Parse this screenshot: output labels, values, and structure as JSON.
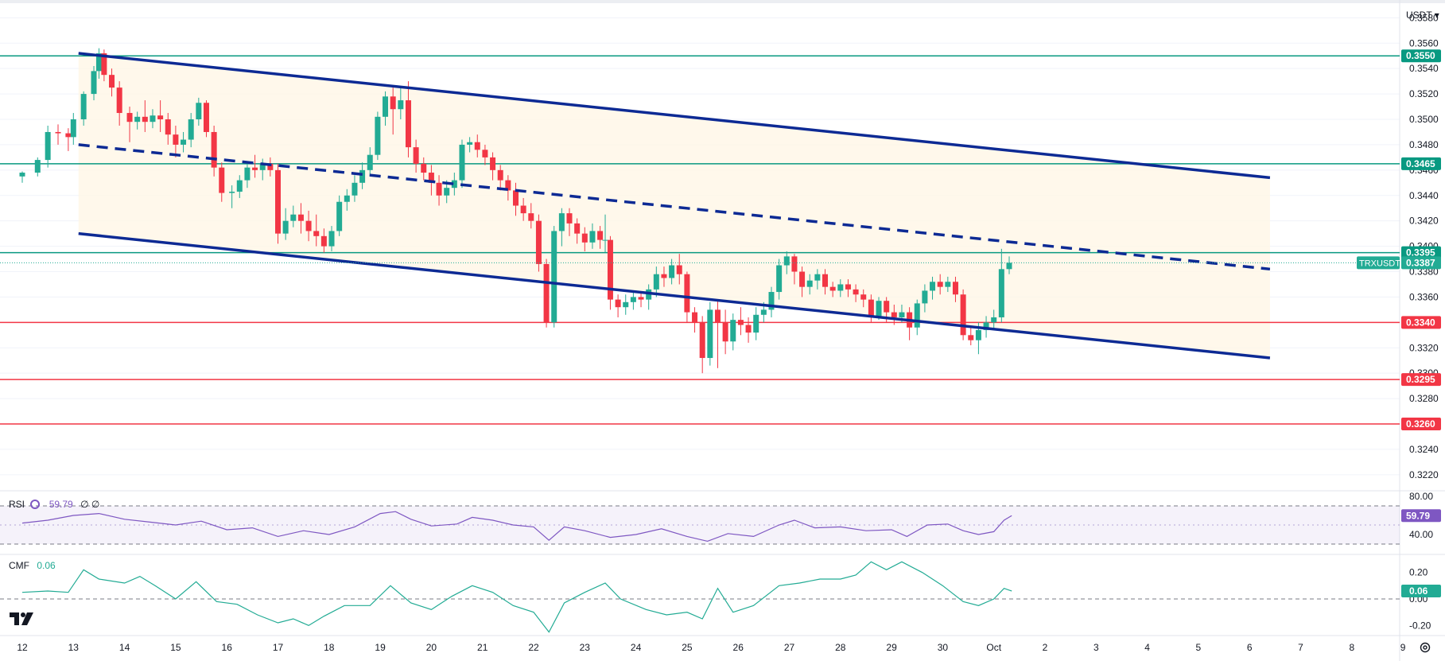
{
  "currency_selector": "USDT",
  "symbol": "TRXUSDT",
  "chart_data": {
    "type": "candlestick",
    "symbol": "TRXUSDT",
    "quote_currency": "USDT",
    "price_axis_ticks": [
      "0.3580",
      "0.3560",
      "0.3540",
      "0.3520",
      "0.3500",
      "0.3480",
      "0.3460",
      "0.3440",
      "0.3420",
      "0.3400",
      "0.3380",
      "0.3360",
      "0.3340",
      "0.3320",
      "0.3300",
      "0.3280",
      "0.3260",
      "0.3240",
      "0.3220"
    ],
    "price_ylim": [
      0.3208,
      0.3594
    ],
    "x_labels": [
      "12",
      "13",
      "14",
      "15",
      "16",
      "17",
      "18",
      "19",
      "20",
      "21",
      "22",
      "23",
      "24",
      "25",
      "26",
      "27",
      "28",
      "29",
      "30",
      "Oct",
      "2",
      "3",
      "4",
      "5",
      "6",
      "7",
      "8",
      "9"
    ],
    "current_price": "0.3387",
    "horizontal_levels": [
      {
        "price": 0.355,
        "label": "0.3550",
        "color": "#089981"
      },
      {
        "price": 0.3465,
        "label": "0.3465",
        "color": "#089981"
      },
      {
        "price": 0.3395,
        "label": "0.3395",
        "color": "#089981"
      },
      {
        "price": 0.334,
        "label": "0.3340",
        "color": "#f23645"
      },
      {
        "price": 0.3295,
        "label": "0.3295",
        "color": "#f23645"
      },
      {
        "price": 0.326,
        "label": "0.3260",
        "color": "#f23645"
      }
    ],
    "channel": {
      "upper": {
        "from": [
          13.1,
          0.3552
        ],
        "to": [
          36.4,
          0.3454
        ]
      },
      "middle": {
        "from": [
          13.1,
          0.348
        ],
        "to": [
          36.4,
          0.3382
        ]
      },
      "lower": {
        "from": [
          13.1,
          0.341
        ],
        "to": [
          36.4,
          0.3312
        ]
      },
      "color": "#0d2a94"
    },
    "candles": [
      [
        12.0,
        0.3455,
        0.3458,
        0.345,
        0.3459
      ],
      [
        12.3,
        0.3458,
        0.3468,
        0.3455,
        0.347
      ],
      [
        12.5,
        0.3468,
        0.349,
        0.3462,
        0.3495
      ],
      [
        12.7,
        0.349,
        0.3489,
        0.348,
        0.3496
      ],
      [
        12.9,
        0.3489,
        0.3486,
        0.3475,
        0.3493
      ],
      [
        13.0,
        0.3486,
        0.35,
        0.348,
        0.3505
      ],
      [
        13.2,
        0.35,
        0.352,
        0.3495,
        0.3522
      ],
      [
        13.4,
        0.352,
        0.3538,
        0.3515,
        0.3542
      ],
      [
        13.5,
        0.3538,
        0.3552,
        0.3532,
        0.3556
      ],
      [
        13.6,
        0.3552,
        0.3535,
        0.353,
        0.3555
      ],
      [
        13.75,
        0.3535,
        0.3525,
        0.3518,
        0.354
      ],
      [
        13.9,
        0.3525,
        0.3505,
        0.3495,
        0.353
      ],
      [
        14.1,
        0.3505,
        0.3498,
        0.3482,
        0.351
      ],
      [
        14.25,
        0.3498,
        0.3502,
        0.3492,
        0.3506
      ],
      [
        14.4,
        0.3502,
        0.3498,
        0.349,
        0.3515
      ],
      [
        14.55,
        0.3498,
        0.3503,
        0.3493,
        0.3508
      ],
      [
        14.7,
        0.3503,
        0.35,
        0.349,
        0.3515
      ],
      [
        14.85,
        0.35,
        0.3488,
        0.348,
        0.3505
      ],
      [
        15.0,
        0.3488,
        0.348,
        0.347,
        0.3495
      ],
      [
        15.15,
        0.348,
        0.3484,
        0.3474,
        0.349
      ],
      [
        15.3,
        0.3484,
        0.35,
        0.3478,
        0.3505
      ],
      [
        15.45,
        0.35,
        0.3513,
        0.3495,
        0.3517
      ],
      [
        15.6,
        0.3513,
        0.349,
        0.3486,
        0.3515
      ],
      [
        15.75,
        0.349,
        0.3462,
        0.3455,
        0.3495
      ],
      [
        15.9,
        0.3462,
        0.3442,
        0.3435,
        0.3466
      ],
      [
        16.1,
        0.3442,
        0.3443,
        0.343,
        0.3448
      ],
      [
        16.25,
        0.3443,
        0.3452,
        0.3438,
        0.3456
      ],
      [
        16.4,
        0.3452,
        0.3462,
        0.3446,
        0.3466
      ],
      [
        16.55,
        0.3462,
        0.346,
        0.3454,
        0.3472
      ],
      [
        16.7,
        0.346,
        0.3465,
        0.3452,
        0.3469
      ],
      [
        16.85,
        0.3465,
        0.346,
        0.3455,
        0.347
      ],
      [
        17.0,
        0.346,
        0.341,
        0.3402,
        0.3465
      ],
      [
        17.15,
        0.341,
        0.342,
        0.3405,
        0.343
      ],
      [
        17.3,
        0.342,
        0.3425,
        0.3415,
        0.3432
      ],
      [
        17.45,
        0.3425,
        0.342,
        0.341,
        0.3434
      ],
      [
        17.6,
        0.342,
        0.3412,
        0.3404,
        0.3428
      ],
      [
        17.75,
        0.3412,
        0.3408,
        0.34,
        0.3425
      ],
      [
        17.9,
        0.3408,
        0.34,
        0.3395,
        0.3414
      ],
      [
        18.05,
        0.34,
        0.3412,
        0.3396,
        0.3416
      ],
      [
        18.2,
        0.3412,
        0.3435,
        0.3408,
        0.344
      ],
      [
        18.35,
        0.3435,
        0.344,
        0.3428,
        0.3445
      ],
      [
        18.5,
        0.344,
        0.345,
        0.3435,
        0.3456
      ],
      [
        18.65,
        0.345,
        0.346,
        0.3445,
        0.3466
      ],
      [
        18.8,
        0.346,
        0.3472,
        0.3455,
        0.3478
      ],
      [
        18.95,
        0.3472,
        0.3502,
        0.3468,
        0.3506
      ],
      [
        19.1,
        0.3502,
        0.3518,
        0.3495,
        0.3522
      ],
      [
        19.25,
        0.3518,
        0.3508,
        0.3488,
        0.3525
      ],
      [
        19.4,
        0.3508,
        0.3515,
        0.35,
        0.3525
      ],
      [
        19.55,
        0.3515,
        0.3478,
        0.347,
        0.353
      ],
      [
        19.7,
        0.3478,
        0.3465,
        0.3458,
        0.3484
      ],
      [
        19.85,
        0.3465,
        0.3458,
        0.3452,
        0.347
      ],
      [
        20.0,
        0.3458,
        0.345,
        0.344,
        0.3464
      ],
      [
        20.15,
        0.345,
        0.344,
        0.3432,
        0.3456
      ],
      [
        20.3,
        0.344,
        0.3446,
        0.3434,
        0.3452
      ],
      [
        20.45,
        0.3446,
        0.3452,
        0.344,
        0.3458
      ],
      [
        20.6,
        0.3452,
        0.348,
        0.3446,
        0.3484
      ],
      [
        20.75,
        0.348,
        0.3482,
        0.3474,
        0.3486
      ],
      [
        20.9,
        0.3482,
        0.3476,
        0.347,
        0.3488
      ],
      [
        21.05,
        0.3476,
        0.347,
        0.3464,
        0.348
      ],
      [
        21.2,
        0.347,
        0.346,
        0.3452,
        0.3474
      ],
      [
        21.35,
        0.346,
        0.3452,
        0.3444,
        0.3464
      ],
      [
        21.5,
        0.3452,
        0.3444,
        0.3436,
        0.3456
      ],
      [
        21.65,
        0.3444,
        0.3432,
        0.3424,
        0.345
      ],
      [
        21.8,
        0.3432,
        0.3426,
        0.342,
        0.3438
      ],
      [
        21.95,
        0.3426,
        0.342,
        0.3414,
        0.3434
      ],
      [
        22.1,
        0.342,
        0.3386,
        0.338,
        0.3425
      ],
      [
        22.25,
        0.3386,
        0.334,
        0.3336,
        0.339
      ],
      [
        22.4,
        0.334,
        0.3412,
        0.3336,
        0.3416
      ],
      [
        22.55,
        0.3412,
        0.3426,
        0.34,
        0.343
      ],
      [
        22.7,
        0.3426,
        0.3418,
        0.3408,
        0.343
      ],
      [
        22.85,
        0.3418,
        0.341,
        0.3402,
        0.3422
      ],
      [
        23.0,
        0.341,
        0.3403,
        0.3396,
        0.3415
      ],
      [
        23.15,
        0.3403,
        0.3412,
        0.3398,
        0.3418
      ],
      [
        23.3,
        0.3412,
        0.3405,
        0.3398,
        0.3416
      ],
      [
        23.4,
        0.3405,
        0.3405,
        0.3395,
        0.3425
      ],
      [
        23.5,
        0.3405,
        0.3358,
        0.335,
        0.3408
      ],
      [
        23.65,
        0.3358,
        0.3352,
        0.3344,
        0.3362
      ],
      [
        23.8,
        0.3352,
        0.3356,
        0.3346,
        0.3362
      ],
      [
        23.95,
        0.3356,
        0.336,
        0.335,
        0.3364
      ],
      [
        24.1,
        0.336,
        0.3358,
        0.3352,
        0.3364
      ],
      [
        24.25,
        0.3358,
        0.3366,
        0.335,
        0.337
      ],
      [
        24.4,
        0.3366,
        0.3378,
        0.336,
        0.3384
      ],
      [
        24.55,
        0.3378,
        0.3375,
        0.3368,
        0.3384
      ],
      [
        24.7,
        0.3375,
        0.3385,
        0.337,
        0.339
      ],
      [
        24.85,
        0.3385,
        0.3378,
        0.337,
        0.3394
      ],
      [
        25.0,
        0.3378,
        0.3348,
        0.334,
        0.338
      ],
      [
        25.15,
        0.3348,
        0.334,
        0.3332,
        0.3352
      ],
      [
        25.3,
        0.334,
        0.3312,
        0.33,
        0.3345
      ],
      [
        25.45,
        0.3312,
        0.335,
        0.3306,
        0.3356
      ],
      [
        25.6,
        0.335,
        0.334,
        0.3304,
        0.3358
      ],
      [
        25.75,
        0.334,
        0.3325,
        0.3315,
        0.335
      ],
      [
        25.9,
        0.3325,
        0.3342,
        0.3318,
        0.3347
      ],
      [
        26.05,
        0.3342,
        0.3338,
        0.333,
        0.3352
      ],
      [
        26.2,
        0.3338,
        0.3332,
        0.3324,
        0.3344
      ],
      [
        26.35,
        0.3332,
        0.3346,
        0.3326,
        0.3352
      ],
      [
        26.5,
        0.3346,
        0.335,
        0.334,
        0.3356
      ],
      [
        26.65,
        0.335,
        0.3364,
        0.3344,
        0.3368
      ],
      [
        26.8,
        0.3364,
        0.3385,
        0.3358,
        0.339
      ],
      [
        26.95,
        0.3385,
        0.3392,
        0.3378,
        0.3396
      ],
      [
        27.1,
        0.3392,
        0.338,
        0.337,
        0.3394
      ],
      [
        27.25,
        0.338,
        0.3368,
        0.336,
        0.3384
      ],
      [
        27.4,
        0.3368,
        0.3373,
        0.3362,
        0.3378
      ],
      [
        27.55,
        0.3373,
        0.3378,
        0.3366,
        0.3382
      ],
      [
        27.7,
        0.3378,
        0.3368,
        0.3362,
        0.3382
      ],
      [
        27.85,
        0.3368,
        0.3365,
        0.336,
        0.3372
      ],
      [
        28.0,
        0.3365,
        0.337,
        0.336,
        0.3374
      ],
      [
        28.15,
        0.337,
        0.3366,
        0.336,
        0.3374
      ],
      [
        28.3,
        0.3366,
        0.3362,
        0.3356,
        0.337
      ],
      [
        28.45,
        0.3362,
        0.3358,
        0.3352,
        0.3366
      ],
      [
        28.6,
        0.3358,
        0.3345,
        0.334,
        0.3362
      ],
      [
        28.75,
        0.3345,
        0.3357,
        0.3342,
        0.336
      ],
      [
        28.9,
        0.3357,
        0.3348,
        0.334,
        0.336
      ],
      [
        29.05,
        0.3348,
        0.3344,
        0.3338,
        0.3354
      ],
      [
        29.2,
        0.3344,
        0.3348,
        0.334,
        0.3354
      ],
      [
        29.35,
        0.3348,
        0.3336,
        0.3326,
        0.3352
      ],
      [
        29.5,
        0.3336,
        0.3355,
        0.333,
        0.3358
      ],
      [
        29.65,
        0.3355,
        0.3365,
        0.3348,
        0.337
      ],
      [
        29.8,
        0.3365,
        0.3372,
        0.3358,
        0.3376
      ],
      [
        29.95,
        0.3372,
        0.3368,
        0.3362,
        0.3378
      ],
      [
        30.1,
        0.3368,
        0.3372,
        0.3364,
        0.3376
      ],
      [
        30.25,
        0.3372,
        0.3362,
        0.3356,
        0.3376
      ],
      [
        30.4,
        0.3362,
        0.333,
        0.3326,
        0.3366
      ],
      [
        30.55,
        0.333,
        0.3326,
        0.3322,
        0.3336
      ],
      [
        30.7,
        0.3326,
        0.3334,
        0.3315,
        0.334
      ],
      [
        30.85,
        0.3334,
        0.334,
        0.3328,
        0.3345
      ],
      [
        31.0,
        0.334,
        0.3344,
        0.3334,
        0.335
      ],
      [
        31.15,
        0.3344,
        0.3382,
        0.334,
        0.3398
      ],
      [
        31.3,
        0.3382,
        0.3387,
        0.3378,
        0.3392
      ]
    ],
    "rsi": {
      "label": "RSI",
      "value": "59.79",
      "extra": "∅ ∅",
      "axis_labels": [
        "80.00",
        "40.00"
      ],
      "ylim": [
        20,
        85
      ],
      "overbought": 70,
      "oversold": 30,
      "color": "#7e57c2",
      "values": [
        [
          12.0,
          52
        ],
        [
          12.5,
          55
        ],
        [
          13.0,
          60
        ],
        [
          13.5,
          62
        ],
        [
          14.0,
          56
        ],
        [
          14.5,
          53
        ],
        [
          15.0,
          50
        ],
        [
          15.5,
          54
        ],
        [
          16.0,
          45
        ],
        [
          16.5,
          47
        ],
        [
          17.0,
          38
        ],
        [
          17.5,
          44
        ],
        [
          18.0,
          40
        ],
        [
          18.5,
          48
        ],
        [
          19.0,
          62
        ],
        [
          19.3,
          64
        ],
        [
          19.6,
          56
        ],
        [
          20.0,
          49
        ],
        [
          20.5,
          51
        ],
        [
          20.8,
          58
        ],
        [
          21.2,
          55
        ],
        [
          21.6,
          50
        ],
        [
          22.0,
          48
        ],
        [
          22.3,
          34
        ],
        [
          22.6,
          48
        ],
        [
          23.0,
          44
        ],
        [
          23.5,
          37
        ],
        [
          24.0,
          40
        ],
        [
          24.5,
          46
        ],
        [
          25.0,
          38
        ],
        [
          25.4,
          33
        ],
        [
          25.8,
          41
        ],
        [
          26.3,
          38
        ],
        [
          26.8,
          50
        ],
        [
          27.1,
          55
        ],
        [
          27.5,
          47
        ],
        [
          28.0,
          48
        ],
        [
          28.5,
          44
        ],
        [
          29.0,
          45
        ],
        [
          29.3,
          38
        ],
        [
          29.7,
          50
        ],
        [
          30.1,
          51
        ],
        [
          30.4,
          44
        ],
        [
          30.7,
          40
        ],
        [
          31.0,
          43
        ],
        [
          31.2,
          55
        ],
        [
          31.35,
          59.79
        ]
      ]
    },
    "cmf": {
      "label": "CMF",
      "value": "0.06",
      "axis_labels": [
        "0.20",
        "0.00",
        "-0.20"
      ],
      "ylim": [
        -0.27,
        0.33
      ],
      "color": "#22ab94",
      "values": [
        [
          12.0,
          0.05
        ],
        [
          12.5,
          0.06
        ],
        [
          12.9,
          0.05
        ],
        [
          13.2,
          0.22
        ],
        [
          13.5,
          0.15
        ],
        [
          14.0,
          0.12
        ],
        [
          14.3,
          0.17
        ],
        [
          14.6,
          0.1
        ],
        [
          15.0,
          0.0
        ],
        [
          15.4,
          0.13
        ],
        [
          15.8,
          -0.02
        ],
        [
          16.2,
          -0.04
        ],
        [
          16.6,
          -0.12
        ],
        [
          17.0,
          -0.18
        ],
        [
          17.3,
          -0.15
        ],
        [
          17.6,
          -0.2
        ],
        [
          17.9,
          -0.13
        ],
        [
          18.3,
          -0.05
        ],
        [
          18.8,
          -0.05
        ],
        [
          19.2,
          0.1
        ],
        [
          19.6,
          -0.03
        ],
        [
          20.0,
          -0.08
        ],
        [
          20.4,
          0.02
        ],
        [
          20.8,
          0.1
        ],
        [
          21.2,
          0.05
        ],
        [
          21.6,
          -0.05
        ],
        [
          22.0,
          -0.1
        ],
        [
          22.3,
          -0.25
        ],
        [
          22.6,
          -0.03
        ],
        [
          23.0,
          0.05
        ],
        [
          23.4,
          0.12
        ],
        [
          23.7,
          0.0
        ],
        [
          24.2,
          -0.08
        ],
        [
          24.6,
          -0.12
        ],
        [
          25.0,
          -0.1
        ],
        [
          25.3,
          -0.15
        ],
        [
          25.6,
          0.08
        ],
        [
          25.9,
          -0.1
        ],
        [
          26.3,
          -0.05
        ],
        [
          26.8,
          0.1
        ],
        [
          27.2,
          0.12
        ],
        [
          27.6,
          0.15
        ],
        [
          28.0,
          0.15
        ],
        [
          28.3,
          0.18
        ],
        [
          28.6,
          0.28
        ],
        [
          28.9,
          0.22
        ],
        [
          29.2,
          0.28
        ],
        [
          29.6,
          0.2
        ],
        [
          30.0,
          0.1
        ],
        [
          30.4,
          -0.02
        ],
        [
          30.7,
          -0.05
        ],
        [
          31.0,
          0.0
        ],
        [
          31.2,
          0.08
        ],
        [
          31.35,
          0.06
        ]
      ]
    }
  },
  "colors": {
    "up": "#22ab94",
    "down": "#f23645",
    "channel": "#0d2a94",
    "support_line": "#089981",
    "resistance_line": "#f23645",
    "rsi": "#7e57c2",
    "cmf": "#22ab94",
    "grid": "#f0f3fa"
  }
}
